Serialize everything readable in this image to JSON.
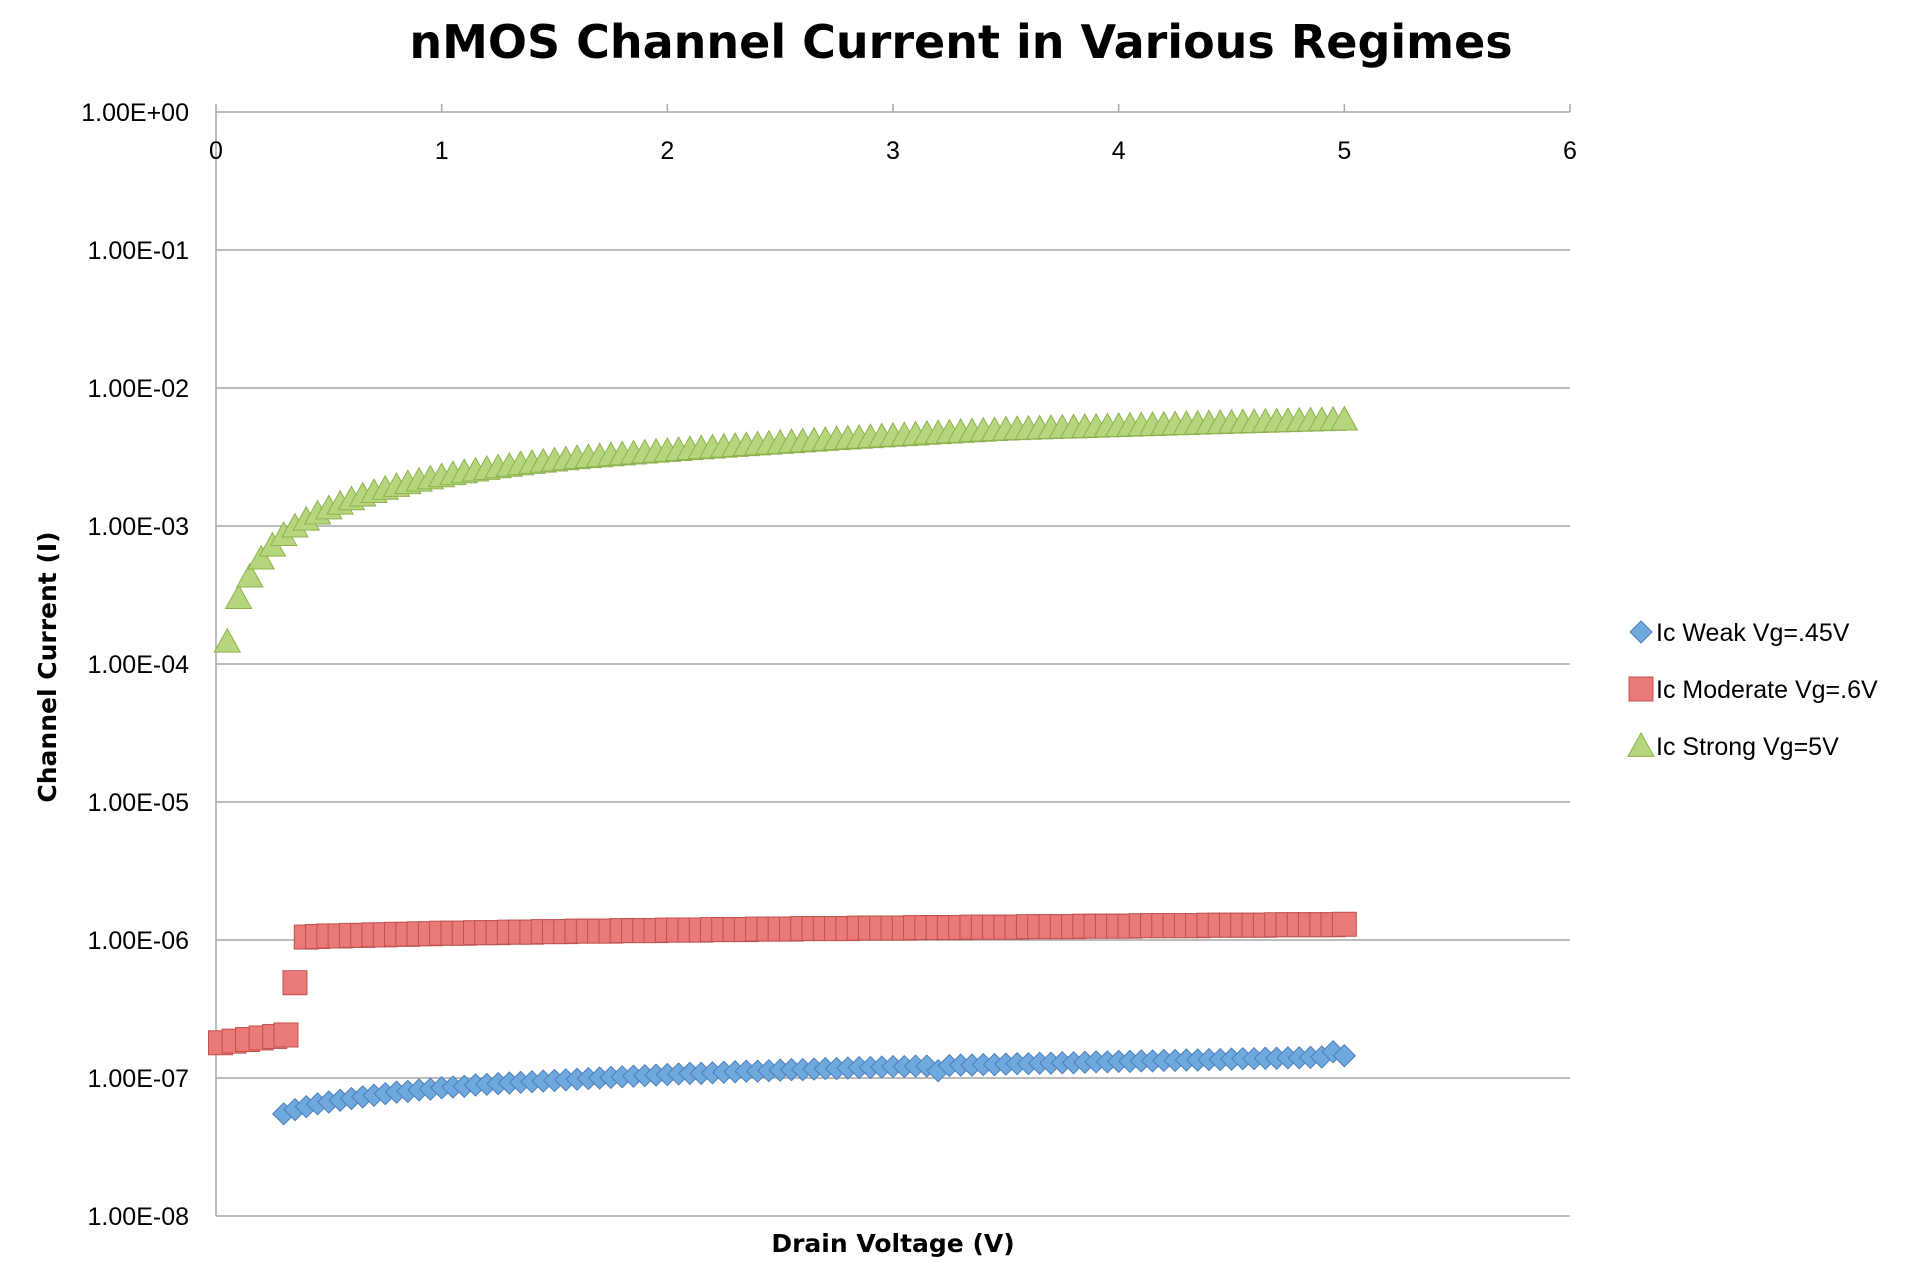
{
  "colors": {
    "weak": "#6fa8dc",
    "weak_stroke": "#4a7fbd",
    "moderate": "#ea7a78",
    "moderate_stroke": "#c0504d",
    "strong": "#b5d67c",
    "strong_stroke": "#8db04d",
    "grid": "#a6a6a6"
  },
  "chart_data": {
    "type": "scatter",
    "title": "nMOS Channel Current in Various Regimes",
    "xlabel": "Drain Voltage (V)",
    "ylabel": "Channel Current (I)",
    "xlim": [
      0,
      6
    ],
    "ylim": [
      1e-08,
      1
    ],
    "yscale": "log",
    "x_tick_labels": [
      "0",
      "1",
      "2",
      "3",
      "4",
      "5",
      "6"
    ],
    "y_tick_labels": [
      "1.00E+00",
      "1.00E-01",
      "1.00E-02",
      "1.00E-03",
      "1.00E-04",
      "1.00E-05",
      "1.00E-06",
      "1.00E-07",
      "1.00E-08"
    ],
    "x_axis_position": "top",
    "grid": true,
    "legend_position": "right",
    "series": [
      {
        "name": "Ic Weak Vg=.45V",
        "marker": "diamond",
        "x": [
          0.3,
          0.35,
          0.4,
          0.45,
          0.5,
          0.55,
          0.6,
          0.65,
          0.7,
          0.75,
          0.8,
          0.85,
          0.9,
          0.95,
          1.0,
          1.05,
          1.1,
          1.15,
          1.2,
          1.25,
          1.3,
          1.35,
          1.4,
          1.45,
          1.5,
          1.55,
          1.6,
          1.65,
          1.7,
          1.75,
          1.8,
          1.85,
          1.9,
          1.95,
          2.0,
          2.05,
          2.1,
          2.15,
          2.2,
          2.25,
          2.3,
          2.35,
          2.4,
          2.45,
          2.5,
          2.55,
          2.6,
          2.65,
          2.7,
          2.75,
          2.8,
          2.85,
          2.9,
          2.95,
          3.0,
          3.05,
          3.1,
          3.15,
          3.2,
          3.25,
          3.3,
          3.35,
          3.4,
          3.45,
          3.5,
          3.55,
          3.6,
          3.65,
          3.7,
          3.75,
          3.8,
          3.85,
          3.9,
          3.95,
          4.0,
          4.05,
          4.1,
          4.15,
          4.2,
          4.25,
          4.3,
          4.35,
          4.4,
          4.45,
          4.5,
          4.55,
          4.6,
          4.65,
          4.7,
          4.75,
          4.8,
          4.85,
          4.9,
          4.95,
          5.0
        ],
        "y": [
          5.5e-08,
          5.9e-08,
          6.2e-08,
          6.5e-08,
          6.7e-08,
          6.9e-08,
          7.1e-08,
          7.3e-08,
          7.5e-08,
          7.7e-08,
          7.9e-08,
          8e-08,
          8.2e-08,
          8.3e-08,
          8.5e-08,
          8.6e-08,
          8.7e-08,
          8.9e-08,
          9e-08,
          9.1e-08,
          9.2e-08,
          9.3e-08,
          9.4e-08,
          9.5e-08,
          9.6e-08,
          9.7e-08,
          9.8e-08,
          9.9e-08,
          1e-07,
          1.01e-07,
          1.02e-07,
          1.03e-07,
          1.04e-07,
          1.05e-07,
          1.06e-07,
          1.07e-07,
          1.08e-07,
          1.08e-07,
          1.09e-07,
          1.1e-07,
          1.11e-07,
          1.12e-07,
          1.12e-07,
          1.13e-07,
          1.14e-07,
          1.15e-07,
          1.15e-07,
          1.16e-07,
          1.17e-07,
          1.17e-07,
          1.18e-07,
          1.19e-07,
          1.19e-07,
          1.2e-07,
          1.21e-07,
          1.21e-07,
          1.22e-07,
          1.22e-07,
          1.13e-07,
          1.23e-07,
          1.24e-07,
          1.24e-07,
          1.25e-07,
          1.25e-07,
          1.26e-07,
          1.27e-07,
          1.27e-07,
          1.28e-07,
          1.28e-07,
          1.29e-07,
          1.29e-07,
          1.3e-07,
          1.31e-07,
          1.31e-07,
          1.32e-07,
          1.32e-07,
          1.33e-07,
          1.33e-07,
          1.34e-07,
          1.34e-07,
          1.35e-07,
          1.35e-07,
          1.36e-07,
          1.36e-07,
          1.37e-07,
          1.38e-07,
          1.38e-07,
          1.39e-07,
          1.39e-07,
          1.4e-07,
          1.4e-07,
          1.41e-07,
          1.42e-07,
          1.55e-07,
          1.45e-07
        ]
      },
      {
        "name": "Ic Moderate Vg=.6V",
        "marker": "square",
        "x": [
          0.02,
          0.08,
          0.14,
          0.2,
          0.26,
          0.31,
          0.35,
          0.4,
          0.45,
          0.5,
          0.55,
          0.6,
          0.65,
          0.7,
          0.75,
          0.8,
          0.85,
          0.9,
          0.95,
          1.0,
          1.05,
          1.1,
          1.15,
          1.2,
          1.25,
          1.3,
          1.35,
          1.4,
          1.45,
          1.5,
          1.55,
          1.6,
          1.65,
          1.7,
          1.75,
          1.8,
          1.85,
          1.9,
          1.95,
          2.0,
          2.05,
          2.1,
          2.15,
          2.2,
          2.25,
          2.3,
          2.35,
          2.4,
          2.45,
          2.5,
          2.55,
          2.6,
          2.65,
          2.7,
          2.75,
          2.8,
          2.85,
          2.9,
          2.95,
          3.0,
          3.05,
          3.1,
          3.15,
          3.2,
          3.25,
          3.3,
          3.35,
          3.4,
          3.45,
          3.5,
          3.55,
          3.6,
          3.65,
          3.7,
          3.75,
          3.8,
          3.85,
          3.9,
          3.95,
          4.0,
          4.05,
          4.1,
          4.15,
          4.2,
          4.25,
          4.3,
          4.35,
          4.4,
          4.45,
          4.5,
          4.55,
          4.6,
          4.65,
          4.7,
          4.75,
          4.8,
          4.85,
          4.9,
          4.95,
          5.0
        ],
        "y": [
          1.8e-07,
          1.85e-07,
          1.9e-07,
          1.95e-07,
          2e-07,
          2.05e-07,
          4.9e-07,
          1.05e-06,
          1.06e-06,
          1.07e-06,
          1.07e-06,
          1.08e-06,
          1.08e-06,
          1.09e-06,
          1.09e-06,
          1.1e-06,
          1.1e-06,
          1.11e-06,
          1.11e-06,
          1.12e-06,
          1.12e-06,
          1.12e-06,
          1.13e-06,
          1.13e-06,
          1.13e-06,
          1.14e-06,
          1.14e-06,
          1.14e-06,
          1.15e-06,
          1.15e-06,
          1.15e-06,
          1.16e-06,
          1.16e-06,
          1.16e-06,
          1.16e-06,
          1.17e-06,
          1.17e-06,
          1.17e-06,
          1.17e-06,
          1.18e-06,
          1.18e-06,
          1.18e-06,
          1.18e-06,
          1.19e-06,
          1.19e-06,
          1.19e-06,
          1.19e-06,
          1.2e-06,
          1.2e-06,
          1.2e-06,
          1.2e-06,
          1.21e-06,
          1.21e-06,
          1.21e-06,
          1.21e-06,
          1.21e-06,
          1.22e-06,
          1.22e-06,
          1.22e-06,
          1.22e-06,
          1.22e-06,
          1.23e-06,
          1.23e-06,
          1.23e-06,
          1.23e-06,
          1.23e-06,
          1.24e-06,
          1.24e-06,
          1.24e-06,
          1.24e-06,
          1.24e-06,
          1.25e-06,
          1.25e-06,
          1.25e-06,
          1.25e-06,
          1.25e-06,
          1.26e-06,
          1.26e-06,
          1.26e-06,
          1.26e-06,
          1.26e-06,
          1.27e-06,
          1.27e-06,
          1.27e-06,
          1.27e-06,
          1.27e-06,
          1.27e-06,
          1.28e-06,
          1.28e-06,
          1.28e-06,
          1.28e-06,
          1.28e-06,
          1.28e-06,
          1.29e-06,
          1.29e-06,
          1.29e-06,
          1.29e-06,
          1.29e-06,
          1.29e-06,
          1.3e-06
        ]
      },
      {
        "name": "Ic Strong Vg=5V",
        "marker": "triangle",
        "x": [
          0.05,
          0.1,
          0.15,
          0.2,
          0.25,
          0.3,
          0.35,
          0.4,
          0.45,
          0.5,
          0.55,
          0.6,
          0.65,
          0.7,
          0.75,
          0.8,
          0.85,
          0.9,
          0.95,
          1.0,
          1.05,
          1.1,
          1.15,
          1.2,
          1.25,
          1.3,
          1.35,
          1.4,
          1.45,
          1.5,
          1.55,
          1.6,
          1.65,
          1.7,
          1.75,
          1.8,
          1.85,
          1.9,
          1.95,
          2.0,
          2.05,
          2.1,
          2.15,
          2.2,
          2.25,
          2.3,
          2.35,
          2.4,
          2.45,
          2.5,
          2.55,
          2.6,
          2.65,
          2.7,
          2.75,
          2.8,
          2.85,
          2.9,
          2.95,
          3.0,
          3.05,
          3.1,
          3.15,
          3.2,
          3.25,
          3.3,
          3.35,
          3.4,
          3.45,
          3.5,
          3.55,
          3.6,
          3.65,
          3.7,
          3.75,
          3.8,
          3.85,
          3.9,
          3.95,
          4.0,
          4.05,
          4.1,
          4.15,
          4.2,
          4.25,
          4.3,
          4.35,
          4.4,
          4.45,
          4.5,
          4.55,
          4.6,
          4.65,
          4.7,
          4.75,
          4.8,
          4.85,
          4.9,
          4.95,
          5.0
        ],
        "y": [
          0.000145,
          0.0003,
          0.00043,
          0.00058,
          0.00072,
          0.00086,
          0.00099,
          0.00111,
          0.00123,
          0.00134,
          0.00145,
          0.00156,
          0.00166,
          0.00176,
          0.00186,
          0.00195,
          0.00204,
          0.00213,
          0.00221,
          0.00229,
          0.00237,
          0.00245,
          0.00252,
          0.00259,
          0.00266,
          0.00273,
          0.0028,
          0.00286,
          0.00292,
          0.00298,
          0.00304,
          0.0031,
          0.00315,
          0.0032,
          0.00325,
          0.0033,
          0.00335,
          0.0034,
          0.00345,
          0.0035,
          0.00355,
          0.0036,
          0.00365,
          0.0037,
          0.00375,
          0.0038,
          0.00385,
          0.0039,
          0.00395,
          0.004,
          0.00405,
          0.0041,
          0.00415,
          0.0042,
          0.00425,
          0.0043,
          0.00435,
          0.0044,
          0.00445,
          0.0045,
          0.00455,
          0.0046,
          0.00465,
          0.0047,
          0.00475,
          0.0048,
          0.00485,
          0.0049,
          0.00495,
          0.005,
          0.00503,
          0.00506,
          0.00509,
          0.00512,
          0.00515,
          0.00518,
          0.00521,
          0.00524,
          0.00527,
          0.0053,
          0.00533,
          0.00536,
          0.00539,
          0.00542,
          0.00545,
          0.00548,
          0.00551,
          0.00554,
          0.00557,
          0.0056,
          0.00563,
          0.00566,
          0.00569,
          0.00572,
          0.00575,
          0.00578,
          0.00581,
          0.00584,
          0.00587,
          0.0059
        ]
      }
    ]
  }
}
